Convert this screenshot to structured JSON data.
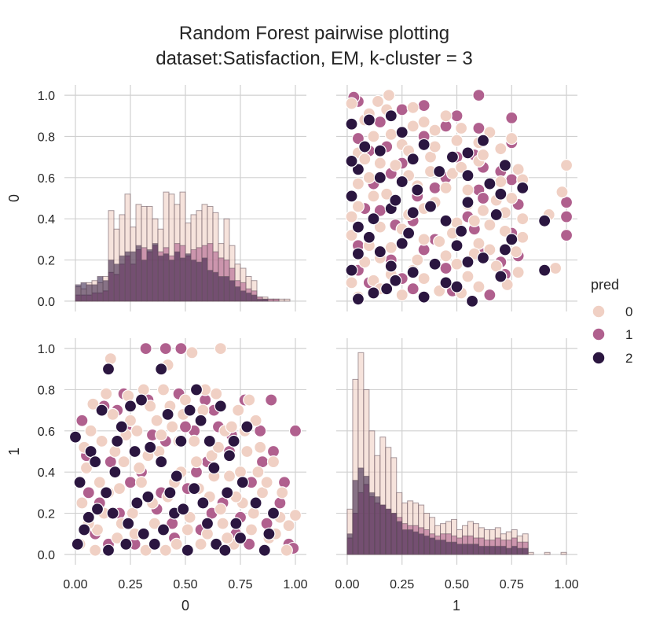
{
  "chart_data": {
    "type": "scatter",
    "title": "Random Forest pairwise plotting",
    "subtitle": "dataset:Satisfaction, EM, k-cluster = 3",
    "variables": [
      "0",
      "1"
    ],
    "xlabels": [
      "0",
      "1"
    ],
    "ylabels": [
      "0",
      "1"
    ],
    "xlim": [
      -0.05,
      1.05
    ],
    "ylim": [
      -0.05,
      1.05
    ],
    "x_ticks": [
      "0.00",
      "0.25",
      "0.50",
      "0.75",
      "1.00"
    ],
    "x_tick_values": [
      0,
      0.25,
      0.5,
      0.75,
      1.0
    ],
    "y_ticks": [
      "0.0",
      "0.2",
      "0.4",
      "0.6",
      "0.8",
      "1.0"
    ],
    "y_tick_values": [
      0,
      0.2,
      0.4,
      0.6,
      0.8,
      1.0
    ],
    "grid": true,
    "legend": {
      "title": "pred",
      "placement": "right",
      "entries": [
        {
          "label": "0",
          "color": "#f0d0c4"
        },
        {
          "label": "1",
          "color": "#b0608e"
        },
        {
          "label": "2",
          "color": "#2b1640"
        }
      ]
    },
    "hist_bin_edges_0": [
      0.0,
      0.025,
      0.05,
      0.075,
      0.1,
      0.125,
      0.15,
      0.175,
      0.2,
      0.225,
      0.25,
      0.275,
      0.3,
      0.325,
      0.35,
      0.375,
      0.4,
      0.425,
      0.45,
      0.475,
      0.5,
      0.525,
      0.55,
      0.575,
      0.6,
      0.625,
      0.65,
      0.675,
      0.7,
      0.725,
      0.75,
      0.775,
      0.8,
      0.825,
      0.85,
      0.875,
      0.9,
      0.925,
      0.95,
      0.975,
      1.0
    ],
    "hist_0": [
      {
        "class": "0",
        "values": [
          0.07,
          0.06,
          0.09,
          0.1,
          0.09,
          0.12,
          0.44,
          0.35,
          0.42,
          0.52,
          0.36,
          0.47,
          0.46,
          0.46,
          0.4,
          0.35,
          0.53,
          0.52,
          0.47,
          0.53,
          0.38,
          0.42,
          0.44,
          0.47,
          0.46,
          0.43,
          0.28,
          0.4,
          0.27,
          0.18,
          0.16,
          0.12,
          0.1,
          0.02,
          0.02,
          0.01,
          0.01,
          0.01,
          0.01,
          0.0
        ]
      },
      {
        "class": "1",
        "values": [
          0.03,
          0.03,
          0.03,
          0.04,
          0.04,
          0.05,
          0.14,
          0.13,
          0.18,
          0.22,
          0.18,
          0.25,
          0.26,
          0.24,
          0.27,
          0.24,
          0.26,
          0.22,
          0.28,
          0.27,
          0.22,
          0.25,
          0.26,
          0.27,
          0.28,
          0.24,
          0.21,
          0.2,
          0.16,
          0.1,
          0.09,
          0.06,
          0.05,
          0.02,
          0.01,
          0.01,
          0.01,
          0.0,
          0.0,
          0.0
        ]
      },
      {
        "class": "2",
        "values": [
          0.08,
          0.09,
          0.08,
          0.08,
          0.12,
          0.1,
          0.2,
          0.18,
          0.22,
          0.24,
          0.24,
          0.27,
          0.2,
          0.25,
          0.28,
          0.22,
          0.23,
          0.2,
          0.24,
          0.21,
          0.23,
          0.2,
          0.19,
          0.21,
          0.15,
          0.14,
          0.12,
          0.12,
          0.1,
          0.07,
          0.05,
          0.04,
          0.03,
          0.01,
          0.01,
          0.0,
          0.0,
          0.0,
          0.0,
          0.0
        ]
      }
    ],
    "hist_bin_edges_1": [
      0.0,
      0.025,
      0.05,
      0.075,
      0.1,
      0.125,
      0.15,
      0.175,
      0.2,
      0.225,
      0.25,
      0.275,
      0.3,
      0.325,
      0.35,
      0.375,
      0.4,
      0.425,
      0.45,
      0.475,
      0.5,
      0.525,
      0.55,
      0.575,
      0.6,
      0.625,
      0.65,
      0.675,
      0.7,
      0.725,
      0.75,
      0.775,
      0.8,
      0.825,
      0.85,
      0.875,
      0.9,
      0.925,
      0.95,
      0.975,
      1.0
    ],
    "hist_1": [
      {
        "class": "0",
        "values": [
          0.22,
          0.85,
          0.98,
          0.8,
          0.6,
          0.48,
          0.57,
          0.52,
          0.47,
          0.3,
          0.25,
          0.26,
          0.25,
          0.24,
          0.2,
          0.18,
          0.14,
          0.15,
          0.16,
          0.17,
          0.12,
          0.14,
          0.16,
          0.15,
          0.13,
          0.12,
          0.12,
          0.13,
          0.1,
          0.11,
          0.12,
          0.09,
          0.1,
          0.01,
          0.0,
          0.0,
          0.01,
          0.0,
          0.0,
          0.01
        ]
      },
      {
        "class": "1",
        "values": [
          0.08,
          0.2,
          0.3,
          0.34,
          0.28,
          0.25,
          0.24,
          0.22,
          0.2,
          0.18,
          0.15,
          0.14,
          0.14,
          0.13,
          0.12,
          0.1,
          0.09,
          0.1,
          0.1,
          0.09,
          0.08,
          0.09,
          0.09,
          0.08,
          0.08,
          0.07,
          0.07,
          0.08,
          0.07,
          0.07,
          0.08,
          0.06,
          0.06,
          0.0,
          0.0,
          0.0,
          0.0,
          0.0,
          0.0,
          0.0
        ]
      },
      {
        "class": "2",
        "values": [
          0.1,
          0.36,
          0.42,
          0.38,
          0.3,
          0.28,
          0.24,
          0.22,
          0.2,
          0.16,
          0.12,
          0.12,
          0.11,
          0.1,
          0.09,
          0.08,
          0.07,
          0.07,
          0.06,
          0.06,
          0.05,
          0.05,
          0.05,
          0.05,
          0.04,
          0.04,
          0.04,
          0.04,
          0.04,
          0.03,
          0.04,
          0.03,
          0.03,
          0.0,
          0.0,
          0.0,
          0.0,
          0.0,
          0.0,
          0.0
        ]
      }
    ],
    "points": {
      "class_0": [
        [
          0.02,
          0.05
        ],
        [
          0.05,
          0.42
        ],
        [
          0.08,
          0.73
        ],
        [
          0.1,
          0.12
        ],
        [
          0.12,
          0.55
        ],
        [
          0.15,
          0.3
        ],
        [
          0.17,
          0.68
        ],
        [
          0.19,
          0.08
        ],
        [
          0.22,
          0.45
        ],
        [
          0.24,
          0.77
        ],
        [
          0.26,
          0.2
        ],
        [
          0.28,
          0.6
        ],
        [
          0.3,
          0.35
        ],
        [
          0.32,
          0.02
        ],
        [
          0.34,
          0.72
        ],
        [
          0.36,
          0.15
        ],
        [
          0.38,
          0.5
        ],
        [
          0.4,
          0.8
        ],
        [
          0.42,
          0.28
        ],
        [
          0.44,
          0.62
        ],
        [
          0.46,
          0.05
        ],
        [
          0.48,
          0.4
        ],
        [
          0.5,
          0.75
        ],
        [
          0.52,
          0.18
        ],
        [
          0.54,
          0.55
        ],
        [
          0.56,
          0.32
        ],
        [
          0.58,
          0.7
        ],
        [
          0.6,
          0.1
        ],
        [
          0.62,
          0.48
        ],
        [
          0.64,
          0.78
        ],
        [
          0.66,
          0.22
        ],
        [
          0.68,
          0.6
        ],
        [
          0.7,
          0.38
        ],
        [
          0.72,
          0.05
        ],
        [
          0.74,
          0.7
        ],
        [
          0.76,
          0.25
        ],
        [
          0.78,
          0.5
        ],
        [
          0.8,
          0.12
        ],
        [
          0.82,
          0.65
        ],
        [
          0.85,
          0.3
        ],
        [
          0.88,
          0.08
        ],
        [
          0.9,
          0.45
        ],
        [
          0.93,
          0.18
        ],
        [
          0.96,
          0.02
        ],
        [
          1.0,
          0.19
        ],
        [
          0.03,
          0.25
        ],
        [
          0.07,
          0.6
        ],
        [
          0.11,
          0.35
        ],
        [
          0.14,
          0.78
        ],
        [
          0.18,
          0.5
        ],
        [
          0.21,
          0.15
        ],
        [
          0.25,
          0.65
        ],
        [
          0.29,
          0.42
        ],
        [
          0.31,
          0.8
        ],
        [
          0.35,
          0.25
        ],
        [
          0.39,
          0.58
        ],
        [
          0.41,
          0.02
        ],
        [
          0.45,
          0.35
        ],
        [
          0.49,
          0.68
        ],
        [
          0.51,
          0.12
        ],
        [
          0.55,
          0.45
        ],
        [
          0.59,
          0.8
        ],
        [
          0.61,
          0.28
        ],
        [
          0.65,
          0.52
        ],
        [
          0.69,
          0.08
        ],
        [
          0.71,
          0.62
        ],
        [
          0.75,
          0.4
        ],
        [
          0.79,
          0.75
        ],
        [
          0.81,
          0.2
        ],
        [
          0.84,
          0.52
        ],
        [
          0.87,
          0.35
        ],
        [
          0.91,
          0.1
        ],
        [
          0.94,
          0.3
        ],
        [
          0.16,
          0.95
        ],
        [
          0.53,
          0.98
        ],
        [
          0.66,
          1.0
        ],
        [
          0.42,
          0.92
        ],
        [
          0.06,
          0.15
        ],
        [
          0.2,
          0.32
        ],
        [
          0.37,
          0.65
        ],
        [
          0.57,
          0.05
        ],
        [
          0.73,
          0.28
        ],
        [
          0.83,
          0.4
        ],
        [
          0.13,
          0.2
        ],
        [
          0.47,
          0.55
        ],
        [
          0.63,
          0.38
        ],
        [
          0.27,
          0.1
        ],
        [
          0.33,
          0.48
        ],
        [
          0.43,
          0.72
        ],
        [
          0.67,
          0.15
        ],
        [
          0.77,
          0.6
        ],
        [
          0.04,
          0.52
        ],
        [
          0.09,
          0.02
        ],
        [
          0.23,
          0.58
        ],
        [
          0.97,
          0.14
        ]
      ],
      "class_1": [
        [
          0.03,
          0.65
        ],
        [
          0.06,
          0.3
        ],
        [
          0.09,
          0.1
        ],
        [
          0.13,
          0.72
        ],
        [
          0.16,
          0.45
        ],
        [
          0.2,
          0.2
        ],
        [
          0.23,
          0.62
        ],
        [
          0.27,
          0.05
        ],
        [
          0.3,
          0.4
        ],
        [
          0.33,
          0.75
        ],
        [
          0.37,
          0.22
        ],
        [
          0.41,
          0.55
        ],
        [
          0.44,
          0.15
        ],
        [
          0.47,
          0.78
        ],
        [
          0.51,
          0.32
        ],
        [
          0.54,
          0.6
        ],
        [
          0.57,
          0.12
        ],
        [
          0.6,
          0.45
        ],
        [
          0.63,
          0.7
        ],
        [
          0.67,
          0.25
        ],
        [
          0.7,
          0.5
        ],
        [
          0.73,
          0.1
        ],
        [
          0.77,
          0.75
        ],
        [
          0.8,
          0.35
        ],
        [
          0.84,
          0.6
        ],
        [
          0.87,
          0.15
        ],
        [
          0.9,
          0.5
        ],
        [
          0.93,
          0.25
        ],
        [
          0.97,
          0.05
        ],
        [
          1.0,
          0.6
        ],
        [
          0.32,
          1.0
        ],
        [
          0.41,
          1.0
        ],
        [
          0.48,
          1.0
        ],
        [
          0.66,
          1.0
        ],
        [
          0.05,
          0.48
        ],
        [
          0.11,
          0.25
        ],
        [
          0.19,
          0.7
        ],
        [
          0.25,
          0.35
        ],
        [
          0.35,
          0.58
        ],
        [
          0.45,
          0.08
        ],
        [
          0.55,
          0.4
        ],
        [
          0.65,
          0.62
        ],
        [
          0.75,
          0.18
        ],
        [
          0.85,
          0.45
        ],
        [
          0.95,
          0.35
        ],
        [
          0.15,
          0.05
        ],
        [
          0.39,
          0.3
        ],
        [
          0.59,
          0.75
        ],
        [
          0.71,
          0.58
        ],
        [
          0.89,
          0.75
        ],
        [
          0.99,
          0.03
        ],
        [
          0.22,
          0.78
        ],
        [
          0.5,
          0.62
        ],
        [
          0.62,
          0.2
        ],
        [
          0.79,
          0.05
        ]
      ],
      "class_2": [
        [
          0.0,
          0.57
        ],
        [
          0.02,
          0.35
        ],
        [
          0.04,
          0.12
        ],
        [
          0.07,
          0.5
        ],
        [
          0.1,
          0.22
        ],
        [
          0.12,
          0.7
        ],
        [
          0.15,
          0.02
        ],
        [
          0.18,
          0.4
        ],
        [
          0.21,
          0.62
        ],
        [
          0.24,
          0.15
        ],
        [
          0.27,
          0.5
        ],
        [
          0.3,
          0.75
        ],
        [
          0.33,
          0.28
        ],
        [
          0.36,
          0.05
        ],
        [
          0.39,
          0.45
        ],
        [
          0.42,
          0.68
        ],
        [
          0.45,
          0.2
        ],
        [
          0.48,
          0.55
        ],
        [
          0.51,
          0.02
        ],
        [
          0.54,
          0.32
        ],
        [
          0.57,
          0.65
        ],
        [
          0.6,
          0.15
        ],
        [
          0.63,
          0.42
        ],
        [
          0.66,
          0.72
        ],
        [
          0.69,
          0.3
        ],
        [
          0.72,
          0.55
        ],
        [
          0.75,
          0.08
        ],
        [
          0.78,
          0.62
        ],
        [
          0.82,
          0.25
        ],
        [
          0.86,
          0.02
        ],
        [
          0.9,
          0.2
        ],
        [
          0.15,
          0.9
        ],
        [
          0.39,
          0.9
        ],
        [
          0.06,
          0.18
        ],
        [
          0.09,
          0.45
        ],
        [
          0.14,
          0.3
        ],
        [
          0.19,
          0.55
        ],
        [
          0.23,
          0.05
        ],
        [
          0.28,
          0.25
        ],
        [
          0.34,
          0.52
        ],
        [
          0.4,
          0.12
        ],
        [
          0.46,
          0.38
        ],
        [
          0.52,
          0.7
        ],
        [
          0.58,
          0.25
        ],
        [
          0.64,
          0.05
        ],
        [
          0.7,
          0.48
        ],
        [
          0.76,
          0.35
        ],
        [
          0.88,
          0.1
        ],
        [
          0.01,
          0.05
        ],
        [
          0.17,
          0.2
        ],
        [
          0.31,
          0.1
        ],
        [
          0.49,
          0.22
        ],
        [
          0.61,
          0.55
        ],
        [
          0.73,
          0.15
        ],
        [
          0.43,
          0.3
        ],
        [
          0.25,
          0.72
        ],
        [
          0.55,
          0.8
        ],
        [
          0.68,
          0.02
        ]
      ]
    }
  }
}
